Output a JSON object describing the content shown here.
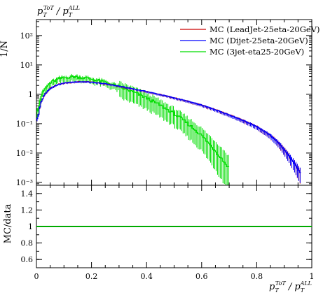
{
  "chart_data": [
    {
      "type": "line",
      "title": "p_T^{ToT}/p_T^{ALL}",
      "ylabel": "1/N",
      "yscale": "log",
      "ylim": [
        0.0008,
        350
      ],
      "xlim": [
        0,
        1
      ],
      "ytick_labels": [
        "10⁻³",
        "10⁻²",
        "10⁻¹",
        "1",
        "10¹",
        "10²"
      ],
      "ytick_values": [
        0.001,
        0.01,
        0.1,
        1,
        10,
        100
      ],
      "legend_position": "top-right",
      "series": [
        {
          "name": "MC (LeadJet-25eta-20GeV)",
          "color": "#cc0000",
          "x": [
            0.005,
            0.015,
            0.03,
            0.05,
            0.08,
            0.11,
            0.14,
            0.17,
            0.2,
            0.25,
            0.3,
            0.35,
            0.4,
            0.45,
            0.5,
            0.55,
            0.6,
            0.65,
            0.7,
            0.75,
            0.8,
            0.85,
            0.88,
            0.91,
            0.94,
            0.96
          ],
          "values": [
            0.15,
            0.5,
            1.0,
            1.6,
            2.2,
            2.5,
            2.65,
            2.7,
            2.6,
            2.3,
            1.9,
            1.55,
            1.25,
            0.98,
            0.76,
            0.58,
            0.43,
            0.3,
            0.2,
            0.13,
            0.08,
            0.04,
            0.022,
            0.01,
            0.004,
            0.002
          ]
        },
        {
          "name": "MC (Dijet-25eta-20GeV)",
          "color": "#0000ff",
          "x": [
            0.005,
            0.015,
            0.03,
            0.05,
            0.08,
            0.11,
            0.14,
            0.17,
            0.2,
            0.25,
            0.3,
            0.35,
            0.4,
            0.45,
            0.5,
            0.55,
            0.6,
            0.65,
            0.7,
            0.75,
            0.8,
            0.85,
            0.88,
            0.91,
            0.94,
            0.96
          ],
          "values": [
            0.15,
            0.5,
            1.0,
            1.6,
            2.2,
            2.5,
            2.65,
            2.7,
            2.6,
            2.3,
            1.9,
            1.55,
            1.25,
            0.98,
            0.76,
            0.58,
            0.43,
            0.3,
            0.2,
            0.13,
            0.08,
            0.04,
            0.022,
            0.01,
            0.004,
            0.002
          ]
        },
        {
          "name": "MC (3jet-eta25-20GeV)",
          "color": "#00dd00",
          "x": [
            0.005,
            0.015,
            0.03,
            0.05,
            0.08,
            0.11,
            0.14,
            0.17,
            0.2,
            0.25,
            0.3,
            0.35,
            0.4,
            0.45,
            0.5,
            0.55,
            0.6,
            0.65,
            0.7
          ],
          "values": [
            0.3,
            0.8,
            1.5,
            2.4,
            3.3,
            3.8,
            4.0,
            3.7,
            3.3,
            2.6,
            1.8,
            1.2,
            0.75,
            0.42,
            0.22,
            0.1,
            0.04,
            0.012,
            0.003
          ]
        }
      ]
    },
    {
      "type": "line",
      "ylabel": "MC/data",
      "xlabel": "p_T^{ToT}/p_T^{ALL}",
      "xlim": [
        0,
        1
      ],
      "ylim": [
        0.5,
        1.5
      ],
      "ytick_labels": [
        "0.6",
        "0.8",
        "1",
        "1.2",
        "1.4"
      ],
      "xtick_labels": [
        "0",
        "0.2",
        "0.4",
        "0.6",
        "0.8",
        "1"
      ],
      "series": [
        {
          "color": "#00aa00",
          "x": [
            0,
            1
          ],
          "values": [
            1,
            1
          ]
        }
      ]
    }
  ]
}
